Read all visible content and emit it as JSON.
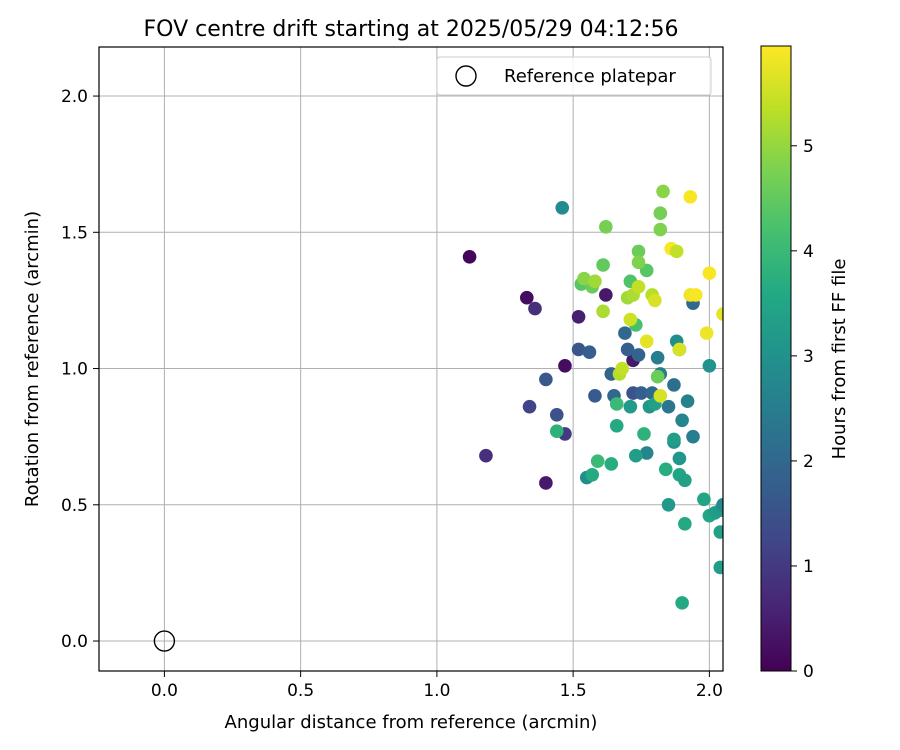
{
  "chart_data": {
    "type": "scatter",
    "title": "FOV centre drift starting at 2025/05/29 04:12:56",
    "xlabel": "Angular distance from reference (arcmin)",
    "ylabel": "Rotation from reference (arcmin)",
    "xlim": [
      -0.24,
      2.05
    ],
    "ylim": [
      -0.11,
      2.18
    ],
    "x_ticks": [
      0.0,
      0.5,
      1.0,
      1.5,
      2.0
    ],
    "x_tick_labels": [
      "0.0",
      "0.5",
      "1.0",
      "1.5",
      "2.0"
    ],
    "y_ticks": [
      0.0,
      0.5,
      1.0,
      1.5,
      2.0
    ],
    "y_tick_labels": [
      "0.0",
      "0.5",
      "1.0",
      "1.5",
      "2.0"
    ],
    "grid": true,
    "legend": {
      "placement": "top-right",
      "entries": [
        "Reference platepar"
      ]
    },
    "reference_point": {
      "label": "Reference platepar",
      "x": 0.0,
      "y": 0.0
    },
    "colorbar": {
      "label": "Hours from first FF file",
      "colormap": "viridis",
      "range": [
        0,
        5.95
      ],
      "ticks": [
        0,
        1,
        2,
        3,
        4,
        5
      ],
      "tick_labels": [
        "0",
        "1",
        "2",
        "3",
        "4",
        "5"
      ]
    },
    "series": [
      {
        "points": [
          {
            "x": 1.12,
            "y": 1.41,
            "c": 0.1
          },
          {
            "x": 1.33,
            "y": 1.26,
            "c": 0.2
          },
          {
            "x": 1.18,
            "y": 0.68,
            "c": 0.8
          },
          {
            "x": 1.4,
            "y": 0.58,
            "c": 0.4
          },
          {
            "x": 1.47,
            "y": 1.01,
            "c": 0.2
          },
          {
            "x": 1.36,
            "y": 1.22,
            "c": 0.8
          },
          {
            "x": 1.52,
            "y": 1.19,
            "c": 0.5
          },
          {
            "x": 1.62,
            "y": 1.27,
            "c": 0.4
          },
          {
            "x": 1.72,
            "y": 1.03,
            "c": 0.4
          },
          {
            "x": 1.34,
            "y": 0.86,
            "c": 1.2
          },
          {
            "x": 1.4,
            "y": 0.96,
            "c": 1.6
          },
          {
            "x": 1.44,
            "y": 0.83,
            "c": 1.5
          },
          {
            "x": 1.47,
            "y": 0.76,
            "c": 1.0
          },
          {
            "x": 1.52,
            "y": 1.07,
            "c": 1.6
          },
          {
            "x": 1.56,
            "y": 1.06,
            "c": 1.8
          },
          {
            "x": 1.58,
            "y": 0.9,
            "c": 1.7
          },
          {
            "x": 1.64,
            "y": 0.98,
            "c": 1.9
          },
          {
            "x": 1.65,
            "y": 0.9,
            "c": 2.0
          },
          {
            "x": 1.7,
            "y": 1.07,
            "c": 1.8
          },
          {
            "x": 1.72,
            "y": 0.91,
            "c": 1.5
          },
          {
            "x": 1.75,
            "y": 0.91,
            "c": 1.8
          },
          {
            "x": 1.69,
            "y": 1.13,
            "c": 2.0
          },
          {
            "x": 1.74,
            "y": 1.05,
            "c": 1.9
          },
          {
            "x": 1.79,
            "y": 0.91,
            "c": 2.0
          },
          {
            "x": 1.81,
            "y": 1.04,
            "c": 2.5
          },
          {
            "x": 1.82,
            "y": 0.98,
            "c": 2.6
          },
          {
            "x": 1.85,
            "y": 0.86,
            "c": 2.3
          },
          {
            "x": 1.87,
            "y": 0.94,
            "c": 2.2
          },
          {
            "x": 1.88,
            "y": 1.1,
            "c": 2.9
          },
          {
            "x": 1.89,
            "y": 1.07,
            "c": 2.5
          },
          {
            "x": 1.94,
            "y": 1.24,
            "c": 2.0
          },
          {
            "x": 1.92,
            "y": 0.88,
            "c": 2.6
          },
          {
            "x": 1.9,
            "y": 0.81,
            "c": 2.7
          },
          {
            "x": 1.94,
            "y": 0.75,
            "c": 2.5
          },
          {
            "x": 1.87,
            "y": 0.73,
            "c": 3.0
          },
          {
            "x": 1.89,
            "y": 0.67,
            "c": 3.1
          },
          {
            "x": 1.77,
            "y": 0.69,
            "c": 2.7
          },
          {
            "x": 1.73,
            "y": 0.68,
            "c": 3.3
          },
          {
            "x": 1.71,
            "y": 0.86,
            "c": 3.2
          },
          {
            "x": 1.78,
            "y": 0.86,
            "c": 3.1
          },
          {
            "x": 1.8,
            "y": 0.87,
            "c": 3.4
          },
          {
            "x": 1.55,
            "y": 0.6,
            "c": 2.9
          },
          {
            "x": 1.46,
            "y": 1.59,
            "c": 2.8
          },
          {
            "x": 1.85,
            "y": 0.5,
            "c": 3.2
          },
          {
            "x": 1.89,
            "y": 0.61,
            "c": 3.5
          },
          {
            "x": 1.91,
            "y": 0.59,
            "c": 3.4
          },
          {
            "x": 1.98,
            "y": 0.52,
            "c": 3.5
          },
          {
            "x": 2.0,
            "y": 0.46,
            "c": 3.5
          },
          {
            "x": 2.02,
            "y": 0.47,
            "c": 3.3
          },
          {
            "x": 2.04,
            "y": 0.48,
            "c": 3.2
          },
          {
            "x": 2.05,
            "y": 0.5,
            "c": 2.8
          },
          {
            "x": 2.04,
            "y": 0.4,
            "c": 3.4
          },
          {
            "x": 2.04,
            "y": 0.27,
            "c": 3.3
          },
          {
            "x": 1.91,
            "y": 0.43,
            "c": 3.6
          },
          {
            "x": 1.9,
            "y": 0.14,
            "c": 3.6
          },
          {
            "x": 2.0,
            "y": 1.01,
            "c": 3.0
          },
          {
            "x": 1.87,
            "y": 0.74,
            "c": 3.3
          },
          {
            "x": 1.57,
            "y": 0.61,
            "c": 3.6
          },
          {
            "x": 1.64,
            "y": 0.65,
            "c": 3.7
          },
          {
            "x": 1.66,
            "y": 0.79,
            "c": 3.6
          },
          {
            "x": 1.76,
            "y": 0.76,
            "c": 3.8
          },
          {
            "x": 1.84,
            "y": 0.63,
            "c": 3.7
          },
          {
            "x": 1.44,
            "y": 0.77,
            "c": 3.8
          },
          {
            "x": 1.59,
            "y": 0.66,
            "c": 4.0
          },
          {
            "x": 1.66,
            "y": 0.87,
            "c": 4.0
          },
          {
            "x": 1.71,
            "y": 1.32,
            "c": 4.3
          },
          {
            "x": 1.73,
            "y": 1.16,
            "c": 4.2
          },
          {
            "x": 1.77,
            "y": 1.36,
            "c": 4.4
          },
          {
            "x": 1.53,
            "y": 1.31,
            "c": 4.4
          },
          {
            "x": 1.57,
            "y": 1.3,
            "c": 4.6
          },
          {
            "x": 1.61,
            "y": 1.38,
            "c": 4.5
          },
          {
            "x": 1.62,
            "y": 1.52,
            "c": 4.7
          },
          {
            "x": 1.74,
            "y": 1.43,
            "c": 4.6
          },
          {
            "x": 1.81,
            "y": 0.97,
            "c": 4.6
          },
          {
            "x": 1.82,
            "y": 1.57,
            "c": 4.7
          },
          {
            "x": 1.82,
            "y": 1.51,
            "c": 4.8
          },
          {
            "x": 1.83,
            "y": 1.65,
            "c": 4.9
          },
          {
            "x": 1.74,
            "y": 1.39,
            "c": 4.8
          },
          {
            "x": 1.54,
            "y": 1.33,
            "c": 4.9
          },
          {
            "x": 1.58,
            "y": 1.32,
            "c": 5.1
          },
          {
            "x": 1.61,
            "y": 1.21,
            "c": 5.2
          },
          {
            "x": 1.67,
            "y": 0.98,
            "c": 5.3
          },
          {
            "x": 1.7,
            "y": 1.26,
            "c": 5.1
          },
          {
            "x": 1.72,
            "y": 1.27,
            "c": 5.2
          },
          {
            "x": 1.74,
            "y": 1.3,
            "c": 5.4
          },
          {
            "x": 1.71,
            "y": 1.18,
            "c": 5.5
          },
          {
            "x": 1.79,
            "y": 1.27,
            "c": 5.3
          },
          {
            "x": 1.8,
            "y": 1.25,
            "c": 5.6
          },
          {
            "x": 1.68,
            "y": 1.0,
            "c": 5.4
          },
          {
            "x": 1.82,
            "y": 0.9,
            "c": 5.6
          },
          {
            "x": 1.77,
            "y": 1.1,
            "c": 5.7
          },
          {
            "x": 1.86,
            "y": 1.44,
            "c": 5.9
          },
          {
            "x": 1.88,
            "y": 1.43,
            "c": 5.4
          },
          {
            "x": 1.89,
            "y": 1.07,
            "c": 5.6
          },
          {
            "x": 1.93,
            "y": 1.27,
            "c": 5.8
          },
          {
            "x": 1.95,
            "y": 1.27,
            "c": 5.9
          },
          {
            "x": 1.93,
            "y": 1.63,
            "c": 5.9
          },
          {
            "x": 1.99,
            "y": 1.13,
            "c": 5.8
          },
          {
            "x": 2.0,
            "y": 1.35,
            "c": 5.9
          },
          {
            "x": 2.05,
            "y": 1.2,
            "c": 5.7
          }
        ]
      }
    ]
  }
}
